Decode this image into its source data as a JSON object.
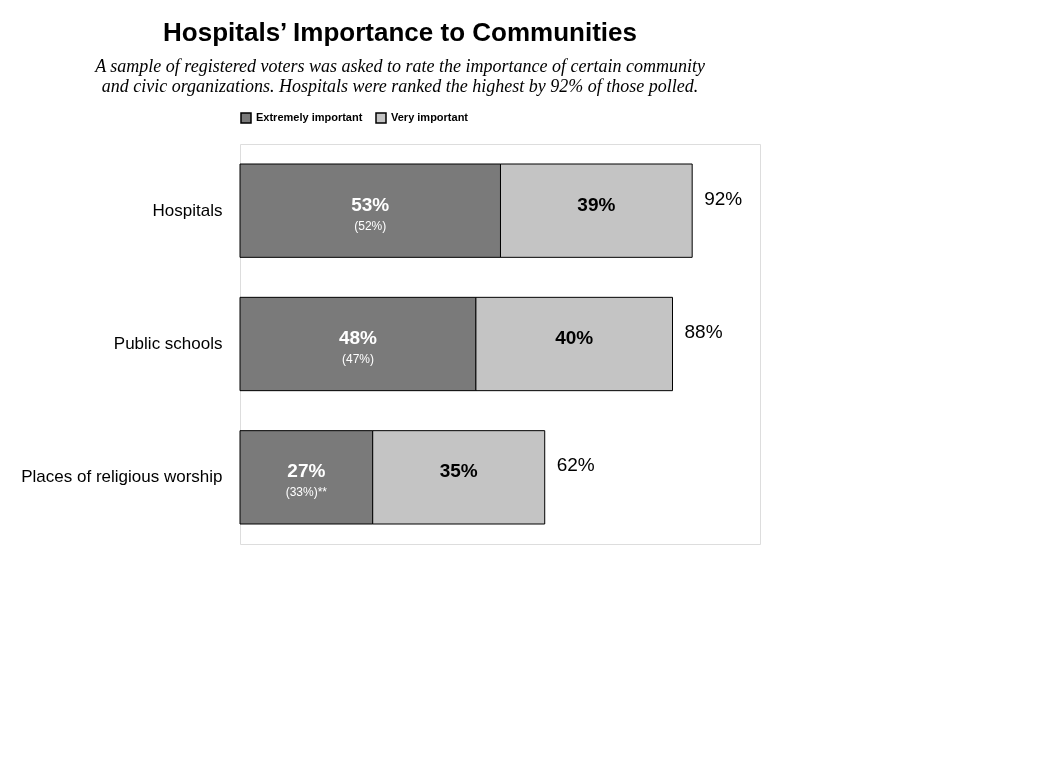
{
  "chart_data": {
    "type": "bar",
    "orientation": "horizontal",
    "stacked": true,
    "title": "Hospitals’ Importance to Communities",
    "subtitle": "A sample of registered voters was asked to rate the importance of certain community and civic organizations.  Hospitals were ranked the highest by 92% of those polled.",
    "categories": [
      "Hospitals",
      "Public schools",
      "Places of religious worship"
    ],
    "series": [
      {
        "name": "Extremely important",
        "color": "#7a7a7a",
        "values": [
          53,
          48,
          27
        ],
        "value_labels": [
          "53%",
          "48%",
          "27%"
        ]
      },
      {
        "name": "Very important",
        "color": "#c4c4c4",
        "values": [
          39,
          40,
          35
        ],
        "value_labels": [
          "39%",
          "40%",
          "35%"
        ]
      }
    ],
    "totals": [
      "92%",
      "88%",
      "62%"
    ],
    "annotations": [
      "(52%)",
      "(47%)",
      "(33%)**"
    ],
    "legend": "top",
    "grid": false,
    "tick_labels": "y"
  }
}
